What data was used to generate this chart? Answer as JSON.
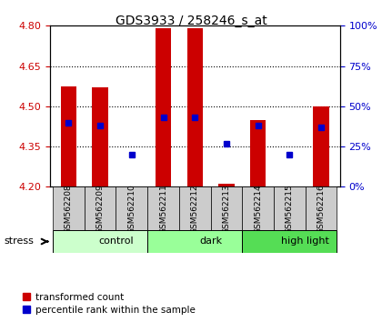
{
  "title": "GDS3933 / 258246_s_at",
  "samples": [
    "GSM562208",
    "GSM562209",
    "GSM562210",
    "GSM562211",
    "GSM562212",
    "GSM562213",
    "GSM562214",
    "GSM562215",
    "GSM562216"
  ],
  "red_values": [
    4.575,
    4.57,
    4.2,
    4.79,
    4.79,
    4.21,
    4.45,
    4.2,
    4.5
  ],
  "blue_values_pct": [
    40,
    38,
    20,
    43,
    43,
    27,
    38,
    20,
    37
  ],
  "ymin": 4.2,
  "ymax": 4.8,
  "yticks": [
    4.2,
    4.35,
    4.5,
    4.65,
    4.8
  ],
  "right_yticks": [
    0,
    25,
    50,
    75,
    100
  ],
  "groups": [
    {
      "label": "control",
      "start": 0,
      "end": 3,
      "color": "#ccffcc"
    },
    {
      "label": "dark",
      "start": 3,
      "end": 6,
      "color": "#99ff99"
    },
    {
      "label": "high light",
      "start": 6,
      "end": 9,
      "color": "#55dd55"
    }
  ],
  "bar_color": "#cc0000",
  "blue_color": "#0000cc",
  "bar_width": 0.5,
  "bar_bottom": 4.2,
  "tick_label_color_left": "#cc0000",
  "tick_label_color_right": "#0000cc",
  "sample_bg_color": "#cccccc",
  "stress_arrow_label": "stress"
}
